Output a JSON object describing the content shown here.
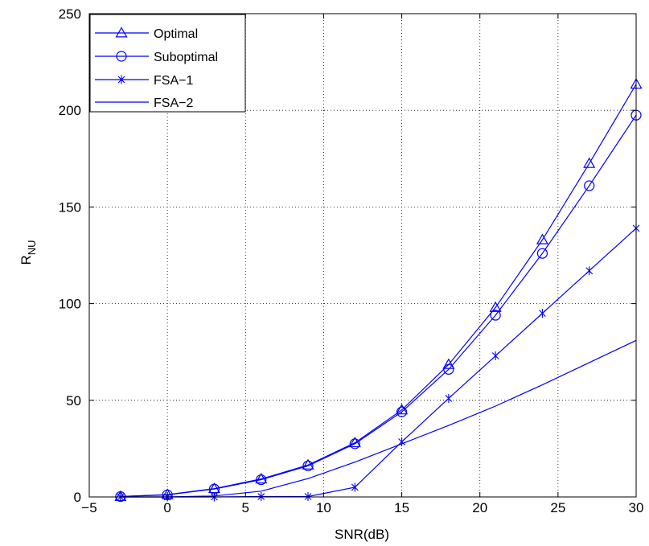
{
  "chart_data": {
    "type": "line",
    "title": "",
    "xlabel": "SNR(dB)",
    "ylabel": {
      "main": "R",
      "sub": "NU"
    },
    "xlim": [
      -5,
      30
    ],
    "ylim": [
      0,
      250
    ],
    "xticks": [
      "−5",
      "0",
      "5",
      "10",
      "15",
      "20",
      "25",
      "30"
    ],
    "yticks": [
      "0",
      "50",
      "100",
      "150",
      "200",
      "250"
    ],
    "grid": true,
    "grid_style": "dotted",
    "legend_position": "top-left",
    "colors": {
      "series": "#0000ff",
      "axes": "#000000",
      "grid": "#000000"
    },
    "series": [
      {
        "name": "Optimal",
        "marker": "triangle",
        "x": [
          -3,
          0,
          3,
          6,
          9,
          12,
          15,
          18,
          21,
          24,
          27,
          30
        ],
        "y": [
          0.2,
          1.2,
          4.3,
          9.3,
          16.5,
          28,
          45,
          68.5,
          98,
          133,
          172.5,
          213.5
        ]
      },
      {
        "name": "Suboptimal",
        "marker": "circle",
        "x": [
          -3,
          0,
          3,
          6,
          9,
          12,
          15,
          18,
          21,
          24,
          27,
          30
        ],
        "y": [
          0.2,
          1.1,
          4.1,
          8.9,
          16.1,
          27.5,
          44,
          66,
          94,
          126,
          161,
          197.5
        ]
      },
      {
        "name": "FSA−1",
        "marker": "asterisk",
        "x": [
          -3,
          0,
          3,
          6,
          9,
          12,
          15,
          18,
          21,
          24,
          27,
          30
        ],
        "y": [
          0,
          0,
          0,
          0.2,
          0.2,
          5,
          28.5,
          51,
          73,
          95,
          117,
          139
        ]
      },
      {
        "name": "FSA−2",
        "marker": "none",
        "x": [
          -3,
          0,
          3,
          6,
          9,
          12,
          15,
          18,
          21,
          24,
          27,
          30
        ],
        "y": [
          0,
          0,
          0.5,
          3,
          9.5,
          18,
          27.5,
          37,
          47,
          58,
          69.5,
          81
        ]
      }
    ]
  }
}
